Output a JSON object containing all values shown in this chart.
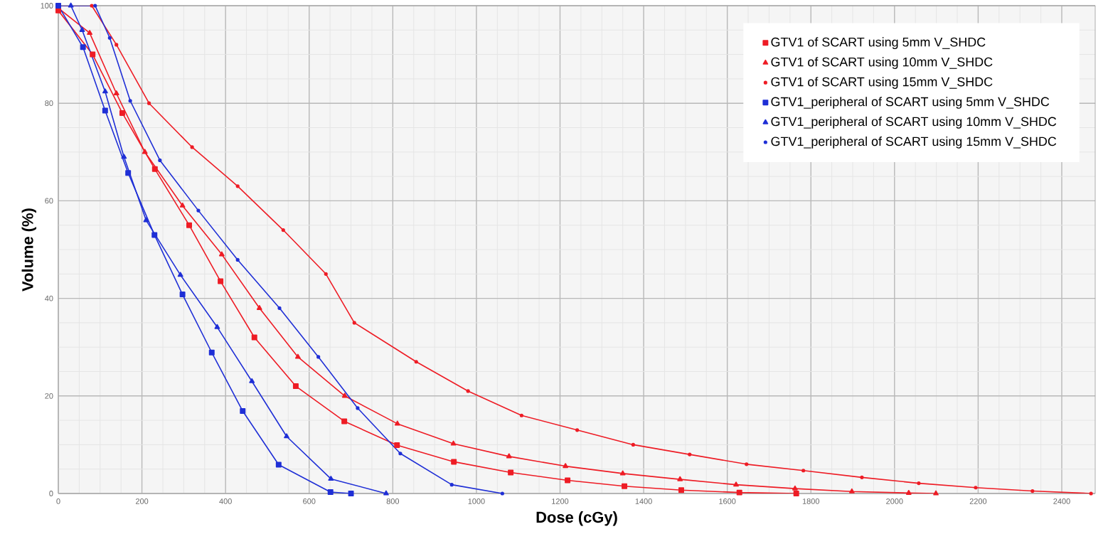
{
  "chart_data": {
    "type": "line",
    "xlabel": "Dose (cGy)",
    "ylabel": "Volume (%)",
    "xlim": [
      0,
      2480
    ],
    "ylim": [
      0,
      100
    ],
    "xticks": [
      0,
      200,
      400,
      600,
      800,
      1000,
      1200,
      1400,
      1600,
      1800,
      2000,
      2200,
      2400
    ],
    "yticks": [
      0,
      20,
      40,
      60,
      80,
      100
    ],
    "grid": true,
    "legend": "top right",
    "line_style": "solid",
    "series": [
      {
        "name": "GTV1 of SCART using 5mm V_SHDC",
        "color": "#ee1c25",
        "marker": "square",
        "x": [
          0,
          82,
          153,
          231,
          313,
          388,
          469,
          568,
          684,
          810,
          946,
          1082,
          1218,
          1354,
          1490,
          1629,
          1765
        ],
        "values": [
          99,
          90,
          78,
          66.5,
          55,
          43.5,
          32,
          22,
          14.8,
          9.9,
          6.5,
          4.3,
          2.7,
          1.5,
          0.7,
          0.2,
          0
        ]
      },
      {
        "name": "GTV1 of SCART using 10mm V_SHDC",
        "color": "#ee1c25",
        "marker": "triangle",
        "x": [
          0,
          75,
          139,
          207,
          297,
          391,
          481,
          573,
          685,
          811,
          945,
          1078,
          1213,
          1350,
          1487,
          1621,
          1762,
          1898,
          2034,
          2099
        ],
        "values": [
          99.5,
          94.4,
          82,
          70,
          59,
          49,
          38,
          28,
          20,
          14.3,
          10.2,
          7.6,
          5.6,
          4.1,
          2.9,
          1.8,
          1,
          0.4,
          0.1,
          0
        ]
      },
      {
        "name": "GTV1 of SCART using 15mm V_SHDC",
        "color": "#ee1c25",
        "marker": "circle",
        "x": [
          0,
          80,
          139,
          217,
          320,
          429,
          538,
          640,
          708,
          856,
          980,
          1108,
          1241,
          1375,
          1510,
          1646,
          1782,
          1922,
          2058,
          2194,
          2330,
          2470
        ],
        "values": [
          100,
          100,
          92,
          80,
          71,
          63,
          54,
          45,
          35,
          27,
          21,
          16,
          13,
          10,
          8,
          6,
          4.7,
          3.3,
          2.1,
          1.2,
          0.5,
          0
        ]
      },
      {
        "name": "GTV1_peripheral of SCART using 5mm V_SHDC",
        "color": "#1f2fd6",
        "marker": "square",
        "x": [
          0,
          59,
          112,
          167,
          230,
          297,
          367,
          441,
          527,
          651,
          700
        ],
        "values": [
          100,
          91.5,
          78.5,
          65.7,
          53,
          40.8,
          28.9,
          16.9,
          5.9,
          0.3,
          0
        ]
      },
      {
        "name": "GTV1_peripheral of SCART using 10mm V_SHDC",
        "color": "#1f2fd6",
        "marker": "triangle",
        "x": [
          30,
          57,
          112,
          157,
          210,
          292,
          380,
          463,
          546,
          652,
          784
        ],
        "values": [
          100,
          95,
          82.4,
          69,
          56,
          44.8,
          34.1,
          23,
          11.7,
          3,
          0
        ]
      },
      {
        "name": "GTV1_peripheral of SCART using 15mm V_SHDC",
        "color": "#1f2fd6",
        "marker": "circle",
        "x": [
          0,
          88,
          123,
          172,
          243,
          335,
          429,
          529,
          622,
          716,
          818,
          941,
          1062
        ],
        "values": [
          100,
          100,
          93.4,
          80.5,
          68.3,
          58,
          47.9,
          38,
          28,
          17.5,
          8.2,
          1.8,
          0
        ]
      }
    ]
  }
}
